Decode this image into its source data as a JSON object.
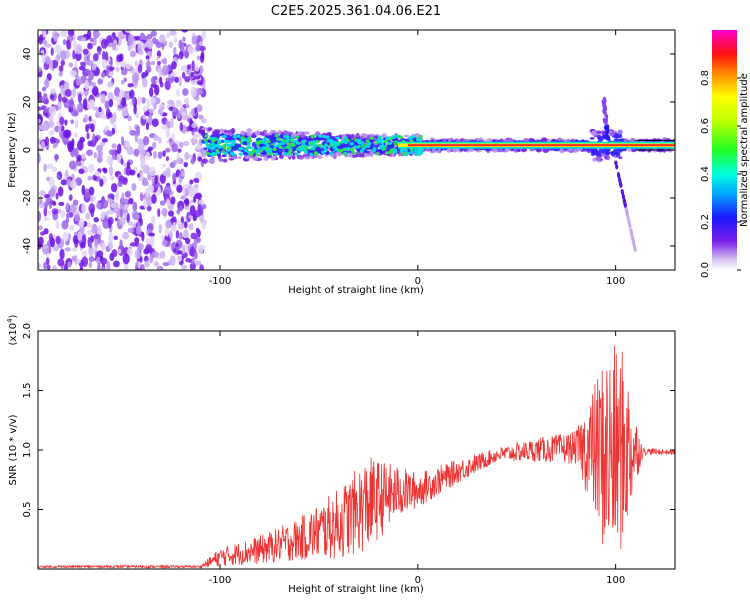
{
  "title": "C2E5.2025.361.04.06.E21",
  "chart_data": [
    {
      "type": "heatmap",
      "xlabel": "Height of straight line (km)",
      "ylabel": "Frequency (Hz)",
      "xlim": [
        -192,
        130
      ],
      "ylim": [
        -50,
        50
      ],
      "xticks": [
        -100,
        0,
        100
      ],
      "yticks": [
        -40,
        -20,
        0,
        20,
        40
      ],
      "colorbar": {
        "label": "Normalized spectral amplitude",
        "range": [
          0.0,
          1.0
        ],
        "ticks": [
          0.0,
          0.2,
          0.4,
          0.6,
          0.8
        ],
        "tick_labels": [
          "0.0",
          "0.2",
          "0.4",
          "0.6",
          "0.8"
        ]
      },
      "features": {
        "noise_region_x": [
          -192,
          -108
        ],
        "carrier_center_hz": 2,
        "carrier_start_x": -108,
        "spike_x": 96,
        "tail_x_range": [
          100,
          110
        ],
        "tail_y_range": [
          -5,
          -42
        ]
      }
    },
    {
      "type": "line",
      "xlabel": "Height of straight line (km)",
      "ylabel": "SNR (10 * v/v)",
      "scale_label": "(x10",
      "scale_exponent": "4",
      "scale_close": ")",
      "xlim": [
        -192,
        130
      ],
      "ylim": [
        0,
        2.0
      ],
      "xticks": [
        -100,
        0,
        100
      ],
      "yticks": [
        0.5,
        1.0,
        1.5,
        2.0
      ],
      "ytick_labels": [
        "0.5",
        "1.0",
        "1.5",
        "2.0"
      ],
      "series": [
        {
          "name": "SNR",
          "color": "#ee3333",
          "envelope": [
            {
              "x": -192,
              "mean": 0.02,
              "amp": 0.01
            },
            {
              "x": -110,
              "mean": 0.02,
              "amp": 0.01
            },
            {
              "x": -100,
              "mean": 0.1,
              "amp": 0.08
            },
            {
              "x": -80,
              "mean": 0.16,
              "amp": 0.12
            },
            {
              "x": -60,
              "mean": 0.25,
              "amp": 0.18
            },
            {
              "x": -40,
              "mean": 0.38,
              "amp": 0.3
            },
            {
              "x": -25,
              "mean": 0.55,
              "amp": 0.4
            },
            {
              "x": -10,
              "mean": 0.65,
              "amp": 0.22
            },
            {
              "x": 0,
              "mean": 0.66,
              "amp": 0.15
            },
            {
              "x": 20,
              "mean": 0.82,
              "amp": 0.1
            },
            {
              "x": 40,
              "mean": 0.96,
              "amp": 0.06
            },
            {
              "x": 60,
              "mean": 1.0,
              "amp": 0.1
            },
            {
              "x": 80,
              "mean": 1.02,
              "amp": 0.14
            },
            {
              "x": 88,
              "mean": 1.0,
              "amp": 0.5
            },
            {
              "x": 96,
              "mean": 0.95,
              "amp": 0.95
            },
            {
              "x": 104,
              "mean": 1.0,
              "amp": 0.85
            },
            {
              "x": 110,
              "mean": 1.0,
              "amp": 0.3
            },
            {
              "x": 114,
              "mean": 0.99,
              "amp": 0.03
            },
            {
              "x": 130,
              "mean": 0.98,
              "amp": 0.02
            }
          ]
        }
      ]
    }
  ]
}
